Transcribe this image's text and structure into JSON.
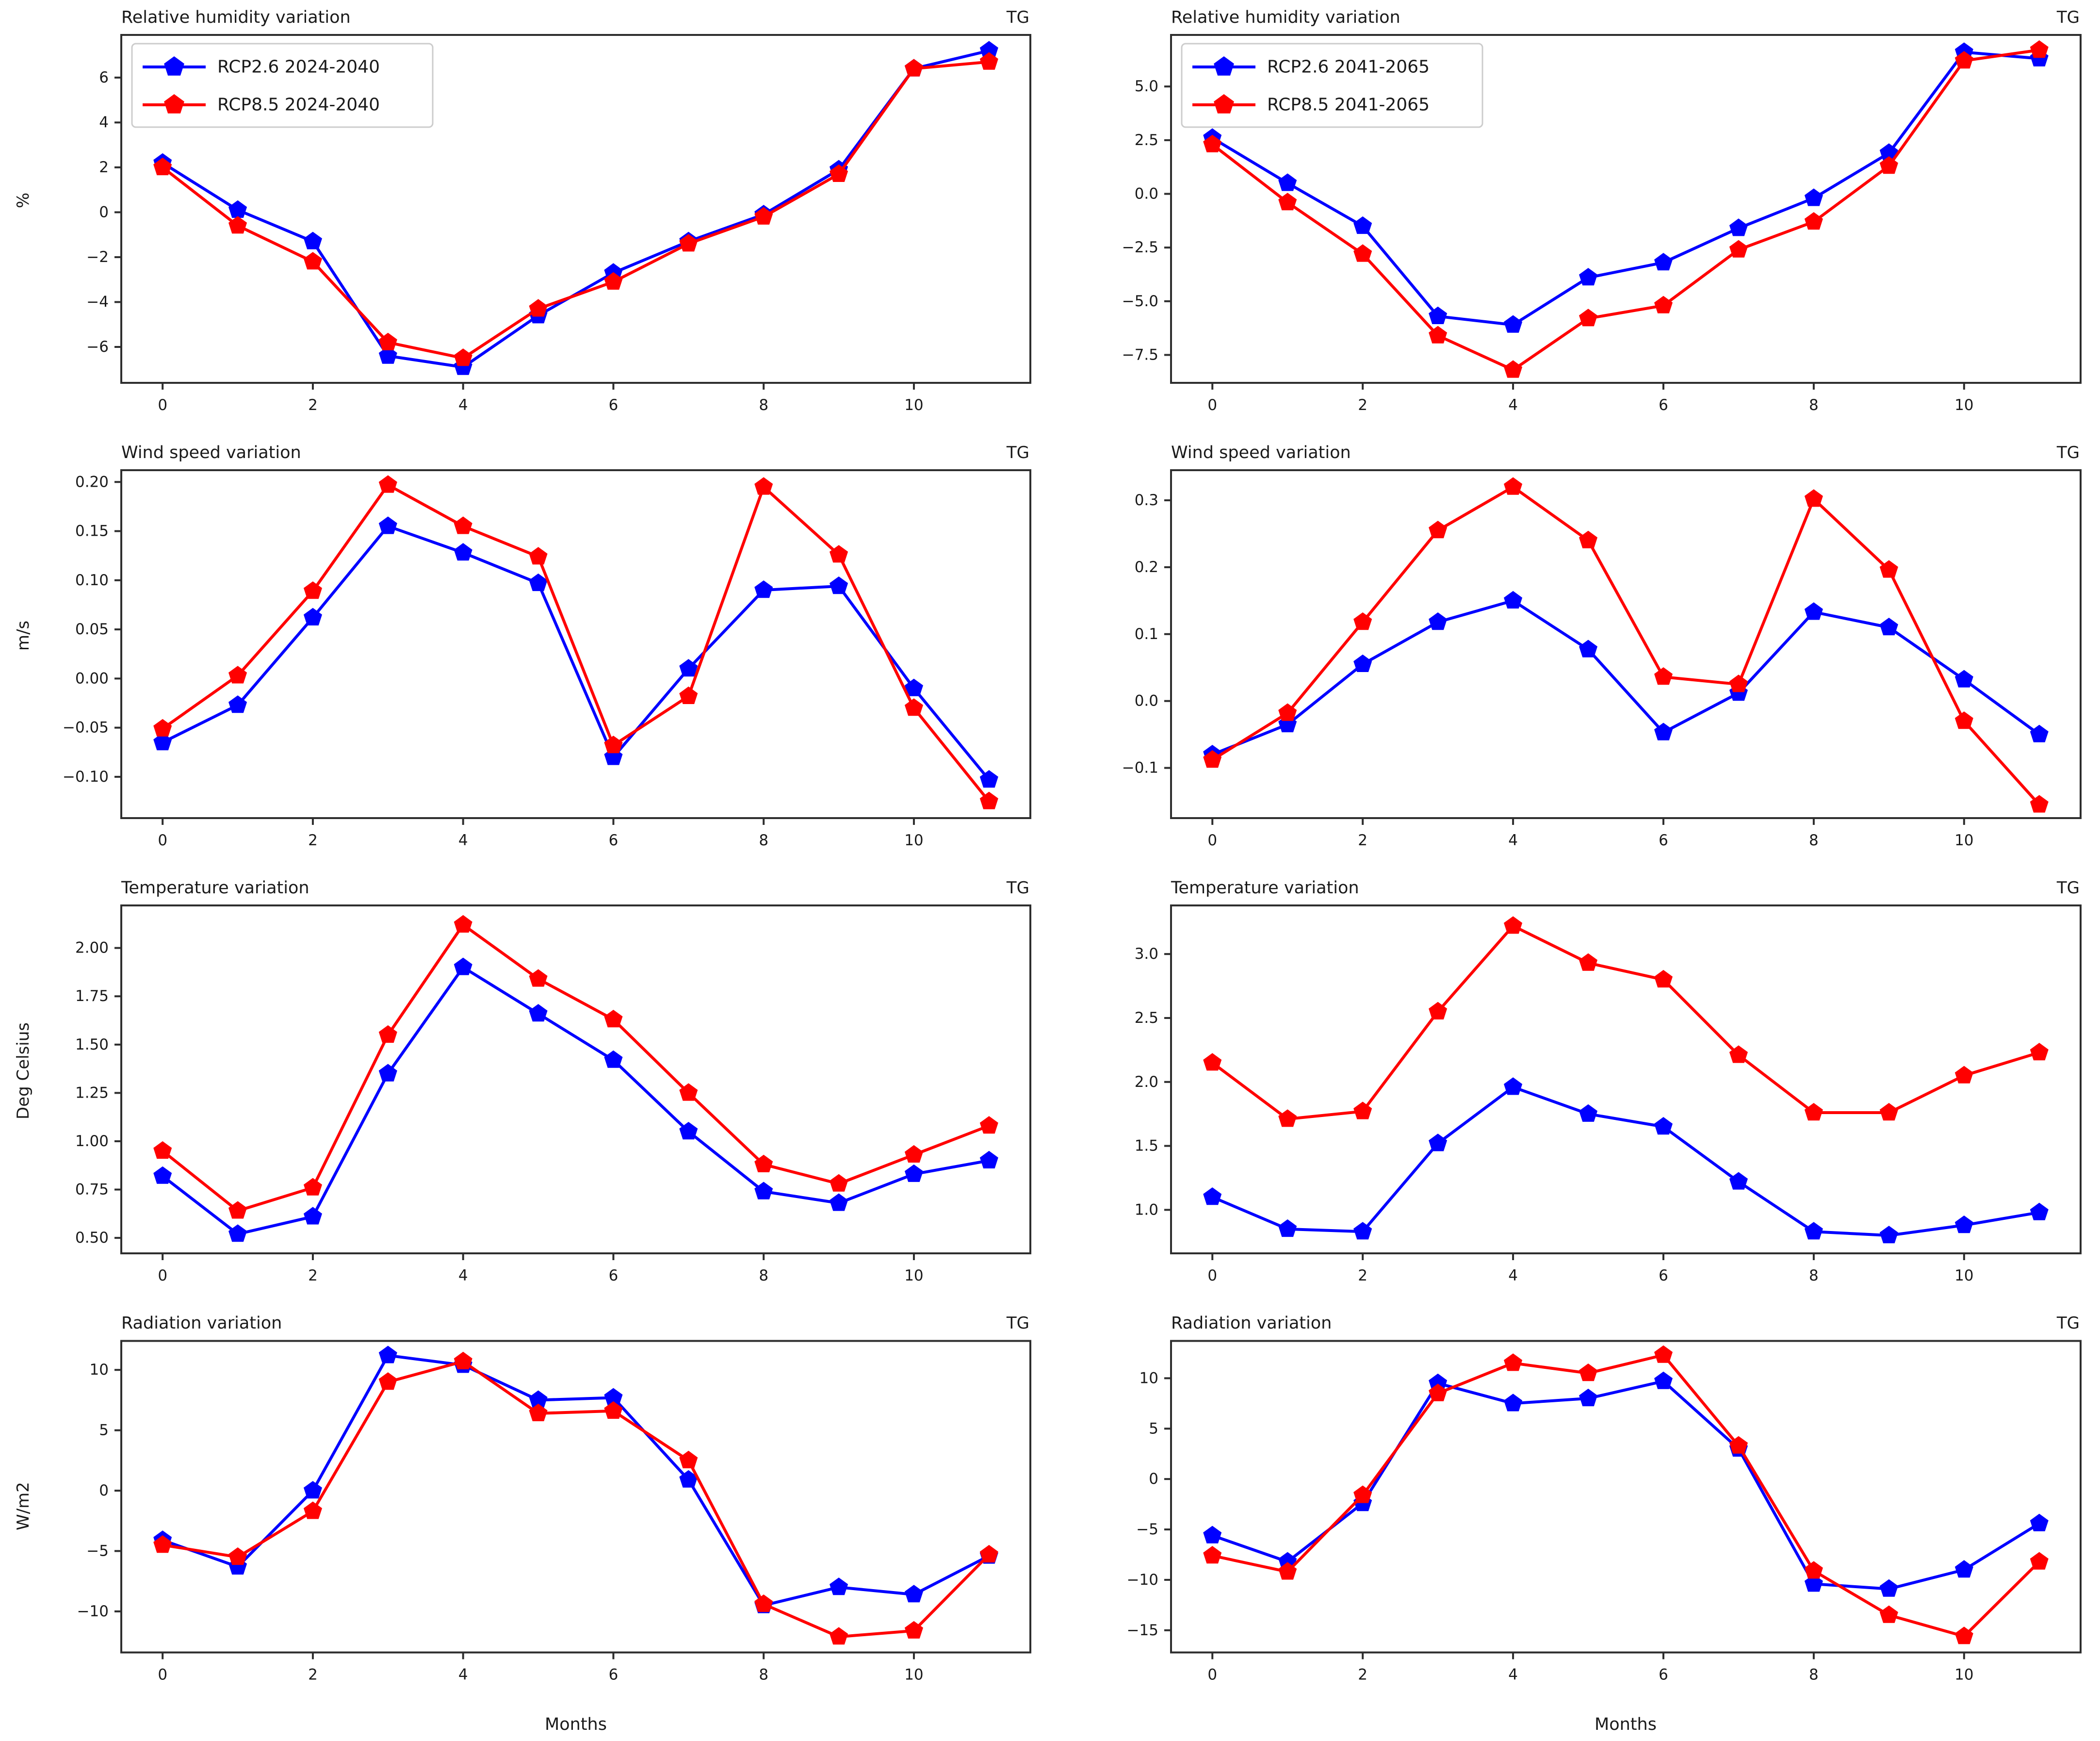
{
  "figure": {
    "corner_label": "TG",
    "months_xlabel": "Months",
    "accent_blue": "#0000ff",
    "accent_red": "#ff0000"
  },
  "chart_data": [
    {
      "type": "line",
      "title": "Relative humidity variation",
      "corner_label": "TG",
      "ylabel": "%",
      "xlabel": "",
      "legend": true,
      "legend_position": "upper-left",
      "grid": false,
      "x": [
        0,
        1,
        2,
        3,
        4,
        5,
        6,
        7,
        8,
        9,
        10,
        11
      ],
      "xticks": [
        0,
        2,
        4,
        6,
        8,
        10
      ],
      "xlim": [
        -0.55,
        11.55
      ],
      "ylim": [
        -7.6,
        7.9
      ],
      "ytick_values": [
        6,
        4,
        2,
        0,
        -2,
        -4,
        -6
      ],
      "ytick_labels": [
        "6",
        "4",
        "2",
        "0",
        "−2",
        "−4",
        "−6"
      ],
      "series": [
        {
          "name": "RCP2.6 2024-2040",
          "color": "#0000ff",
          "values": [
            2.2,
            0.1,
            -1.3,
            -6.4,
            -6.9,
            -4.6,
            -2.7,
            -1.3,
            -0.1,
            1.9,
            6.4,
            7.2
          ]
        },
        {
          "name": "RCP8.5 2024-2040",
          "color": "#ff0000",
          "values": [
            2.0,
            -0.6,
            -2.2,
            -5.8,
            -6.5,
            -4.3,
            -3.1,
            -1.4,
            -0.2,
            1.7,
            6.4,
            6.7
          ]
        }
      ]
    },
    {
      "type": "line",
      "title": "Relative humidity variation",
      "corner_label": "TG",
      "ylabel": "",
      "xlabel": "",
      "legend": true,
      "legend_position": "upper-left",
      "grid": false,
      "x": [
        0,
        1,
        2,
        3,
        4,
        5,
        6,
        7,
        8,
        9,
        10,
        11
      ],
      "xticks": [
        0,
        2,
        4,
        6,
        8,
        10
      ],
      "xlim": [
        -0.55,
        11.55
      ],
      "ylim": [
        -8.8,
        7.4
      ],
      "ytick_values": [
        5.0,
        2.5,
        0.0,
        -2.5,
        -5.0,
        -7.5
      ],
      "ytick_labels": [
        "5.0",
        "2.5",
        "0.0",
        "−2.5",
        "−5.0",
        "−7.5"
      ],
      "series": [
        {
          "name": "RCP2.6 2041-2065",
          "color": "#0000ff",
          "values": [
            2.6,
            0.5,
            -1.5,
            -5.7,
            -6.1,
            -3.9,
            -3.2,
            -1.6,
            -0.2,
            1.9,
            6.6,
            6.3
          ]
        },
        {
          "name": "RCP8.5 2041-2065",
          "color": "#ff0000",
          "values": [
            2.3,
            -0.4,
            -2.8,
            -6.6,
            -8.2,
            -5.8,
            -5.2,
            -2.6,
            -1.3,
            1.3,
            6.2,
            6.7
          ]
        }
      ]
    },
    {
      "type": "line",
      "title": "Wind speed variation",
      "corner_label": "TG",
      "ylabel": "m/s",
      "xlabel": "",
      "legend": false,
      "grid": false,
      "x": [
        0,
        1,
        2,
        3,
        4,
        5,
        6,
        7,
        8,
        9,
        10,
        11
      ],
      "xticks": [
        0,
        2,
        4,
        6,
        8,
        10
      ],
      "xlim": [
        -0.55,
        11.55
      ],
      "ylim": [
        -0.142,
        0.212
      ],
      "ytick_values": [
        0.2,
        0.15,
        0.1,
        0.05,
        0.0,
        -0.05,
        -0.1
      ],
      "ytick_labels": [
        "0.20",
        "0.15",
        "0.10",
        "0.05",
        "0.00",
        "−0.05",
        "−0.10"
      ],
      "series": [
        {
          "name": "RCP2.6 2024-2040",
          "color": "#0000ff",
          "values": [
            -0.065,
            -0.027,
            0.062,
            0.155,
            0.128,
            0.097,
            -0.08,
            0.01,
            0.09,
            0.094,
            -0.01,
            -0.103
          ]
        },
        {
          "name": "RCP8.5 2024-2040",
          "color": "#ff0000",
          "values": [
            -0.051,
            0.003,
            0.089,
            0.197,
            0.155,
            0.124,
            -0.068,
            -0.018,
            0.195,
            0.126,
            -0.03,
            -0.125
          ]
        }
      ]
    },
    {
      "type": "line",
      "title": "Wind speed variation",
      "corner_label": "TG",
      "ylabel": "",
      "xlabel": "",
      "legend": false,
      "grid": false,
      "x": [
        0,
        1,
        2,
        3,
        4,
        5,
        6,
        7,
        8,
        9,
        10,
        11
      ],
      "xticks": [
        0,
        2,
        4,
        6,
        8,
        10
      ],
      "xlim": [
        -0.55,
        11.55
      ],
      "ylim": [
        -0.175,
        0.345
      ],
      "ytick_values": [
        0.3,
        0.2,
        0.1,
        0.0,
        -0.1
      ],
      "ytick_labels": [
        "0.3",
        "0.2",
        "0.1",
        "0.0",
        "−0.1"
      ],
      "series": [
        {
          "name": "RCP2.6 2041-2065",
          "color": "#0000ff",
          "values": [
            -0.08,
            -0.035,
            0.055,
            0.118,
            0.15,
            0.077,
            -0.047,
            0.012,
            0.133,
            0.11,
            0.032,
            -0.05
          ]
        },
        {
          "name": "RCP8.5 2041-2065",
          "color": "#ff0000",
          "values": [
            -0.088,
            -0.018,
            0.118,
            0.255,
            0.32,
            0.24,
            0.036,
            0.025,
            0.302,
            0.196,
            -0.03,
            -0.155
          ]
        }
      ]
    },
    {
      "type": "line",
      "title": "Temperature variation",
      "corner_label": "TG",
      "ylabel": "Deg Celsius",
      "xlabel": "",
      "legend": false,
      "grid": false,
      "x": [
        0,
        1,
        2,
        3,
        4,
        5,
        6,
        7,
        8,
        9,
        10,
        11
      ],
      "xticks": [
        0,
        2,
        4,
        6,
        8,
        10
      ],
      "xlim": [
        -0.55,
        11.55
      ],
      "ylim": [
        0.42,
        2.22
      ],
      "ytick_values": [
        2.0,
        1.75,
        1.5,
        1.25,
        1.0,
        0.75,
        0.5
      ],
      "ytick_labels": [
        "2.00",
        "1.75",
        "1.50",
        "1.25",
        "1.00",
        "0.75",
        "0.50"
      ],
      "series": [
        {
          "name": "RCP2.6 2024-2040",
          "color": "#0000ff",
          "values": [
            0.82,
            0.52,
            0.61,
            1.35,
            1.9,
            1.66,
            1.42,
            1.05,
            0.74,
            0.68,
            0.83,
            0.9
          ]
        },
        {
          "name": "RCP8.5 2024-2040",
          "color": "#ff0000",
          "values": [
            0.95,
            0.64,
            0.76,
            1.55,
            2.12,
            1.84,
            1.63,
            1.25,
            0.88,
            0.78,
            0.93,
            1.08
          ]
        }
      ]
    },
    {
      "type": "line",
      "title": "Temperature variation",
      "corner_label": "TG",
      "ylabel": "",
      "xlabel": "",
      "legend": false,
      "grid": false,
      "x": [
        0,
        1,
        2,
        3,
        4,
        5,
        6,
        7,
        8,
        9,
        10,
        11
      ],
      "xticks": [
        0,
        2,
        4,
        6,
        8,
        10
      ],
      "xlim": [
        -0.55,
        11.55
      ],
      "ylim": [
        0.66,
        3.38
      ],
      "ytick_values": [
        3.0,
        2.5,
        2.0,
        1.5,
        1.0
      ],
      "ytick_labels": [
        "3.0",
        "2.5",
        "2.0",
        "1.5",
        "1.0"
      ],
      "series": [
        {
          "name": "RCP2.6 2041-2065",
          "color": "#0000ff",
          "values": [
            1.1,
            0.85,
            0.83,
            1.52,
            1.96,
            1.75,
            1.65,
            1.22,
            0.83,
            0.8,
            0.88,
            0.98
          ]
        },
        {
          "name": "RCP8.5 2041-2065",
          "color": "#ff0000",
          "values": [
            2.15,
            1.71,
            1.77,
            2.55,
            3.22,
            2.93,
            2.8,
            2.21,
            1.76,
            1.76,
            2.05,
            2.23
          ]
        }
      ]
    },
    {
      "type": "line",
      "title": "Radiation variation",
      "corner_label": "TG",
      "ylabel": "W/m2",
      "xlabel": "Months",
      "legend": false,
      "grid": false,
      "x": [
        0,
        1,
        2,
        3,
        4,
        5,
        6,
        7,
        8,
        9,
        10,
        11
      ],
      "xticks": [
        0,
        2,
        4,
        6,
        8,
        10
      ],
      "xlim": [
        -0.55,
        11.55
      ],
      "ylim": [
        -13.4,
        12.4
      ],
      "ytick_values": [
        10,
        5,
        0,
        -5,
        -10
      ],
      "ytick_labels": [
        "10",
        "5",
        "0",
        "−5",
        "−10"
      ],
      "series": [
        {
          "name": "RCP2.6 2024-2040",
          "color": "#0000ff",
          "values": [
            -4.1,
            -6.3,
            0.0,
            11.2,
            10.4,
            7.5,
            7.7,
            0.9,
            -9.5,
            -8.0,
            -8.6,
            -5.4
          ]
        },
        {
          "name": "RCP8.5 2024-2040",
          "color": "#ff0000",
          "values": [
            -4.5,
            -5.5,
            -1.7,
            9.0,
            10.7,
            6.4,
            6.6,
            2.5,
            -9.4,
            -12.1,
            -11.6,
            -5.3
          ]
        }
      ]
    },
    {
      "type": "line",
      "title": "Radiation variation",
      "corner_label": "TG",
      "ylabel": "",
      "xlabel": "Months",
      "legend": false,
      "grid": false,
      "x": [
        0,
        1,
        2,
        3,
        4,
        5,
        6,
        7,
        8,
        9,
        10,
        11
      ],
      "xticks": [
        0,
        2,
        4,
        6,
        8,
        10
      ],
      "xlim": [
        -0.55,
        11.55
      ],
      "ylim": [
        -17.2,
        13.7
      ],
      "ytick_values": [
        10,
        5,
        0,
        -5,
        -10,
        -15
      ],
      "ytick_labels": [
        "10",
        "5",
        "0",
        "−5",
        "−10",
        "−15"
      ],
      "series": [
        {
          "name": "RCP2.6 2041-2065",
          "color": "#0000ff",
          "values": [
            -5.6,
            -8.2,
            -2.4,
            9.5,
            7.5,
            8.0,
            9.7,
            3.0,
            -10.4,
            -10.9,
            -9.0,
            -4.4
          ]
        },
        {
          "name": "RCP8.5 2041-2065",
          "color": "#ff0000",
          "values": [
            -7.6,
            -9.2,
            -1.6,
            8.5,
            11.5,
            10.5,
            12.3,
            3.3,
            -9.1,
            -13.5,
            -15.6,
            -8.2
          ]
        }
      ]
    }
  ]
}
